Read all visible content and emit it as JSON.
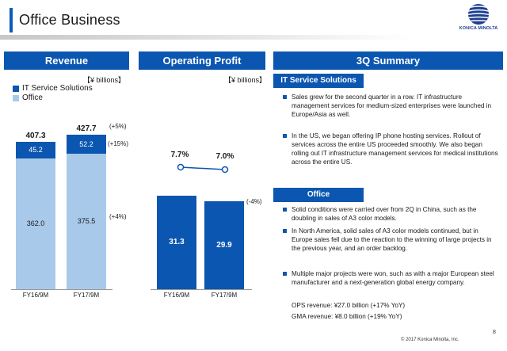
{
  "page": {
    "title": "Office Business",
    "page_number": "8",
    "copyright": "© 2017 Konica Minolta, Inc."
  },
  "logo": {
    "text": "KONICA MINOLTA"
  },
  "revenue": {
    "header": "Revenue",
    "unit": "【¥ billions】",
    "legend": [
      {
        "label": "IT Service Solutions",
        "color": "#0b56b0"
      },
      {
        "label": "Office",
        "color": "#a9c9ea"
      }
    ],
    "chart_data": {
      "type": "bar",
      "stacked": true,
      "categories": [
        "FY16/9M",
        "FY17/9M"
      ],
      "series": [
        {
          "name": "Office",
          "values": [
            362.0,
            375.5
          ]
        },
        {
          "name": "IT Service Solutions",
          "values": [
            45.2,
            52.2
          ]
        }
      ],
      "totals": [
        407.3,
        427.7
      ],
      "value_labels": {
        "office": [
          "362.0",
          "375.5"
        ],
        "it": [
          "45.2",
          "52.2"
        ],
        "totals": [
          "407.3",
          "427.7"
        ]
      },
      "changes": {
        "total": "(+5%)",
        "it": "(+15%)",
        "office": "(+4%)"
      }
    }
  },
  "operating_profit": {
    "header": "Operating Profit",
    "unit": "【¥ billions】",
    "chart_data": {
      "type": "bar",
      "categories": [
        "FY16/9M",
        "FY17/9M"
      ],
      "values": [
        31.3,
        29.9
      ],
      "value_labels": [
        "31.3",
        "29.9"
      ],
      "margin_line": {
        "values": [
          7.7,
          7.0
        ],
        "labels": [
          "7.7%",
          "7.0%"
        ]
      },
      "change": "(-4%)"
    }
  },
  "summary": {
    "header": "3Q Summary",
    "sections": [
      {
        "title": "IT Service Solutions",
        "bullets": [
          "Sales grew for the second quarter in a row. IT infrastructure management services for medium-sized enterprises were launched in Europe/Asia as well.",
          "In the US, we began offering IP phone hosting services. Rollout of services across the entire US proceeded smoothly. We also began rolling out IT infrastructure management services for medical institutions across the entire US."
        ]
      },
      {
        "title": "Office",
        "bullets": [
          "Solid conditions were carried over from 2Q in China, such as the doubling in sales of A3 color models.",
          "In North America, solid sales of A3 color models continued, but in Europe sales fell due to the reaction to the winning of large projects in the previous year, and an order backlog.",
          "Multiple major projects were won, such as with a major European steel manufacturer and a next-generation global energy company."
        ],
        "notes": [
          "OPS revenue:  ¥27.0 billion (+17% YoY)",
          "GMA revenue:  ¥8.0 billion (+19% YoY)"
        ]
      }
    ]
  }
}
